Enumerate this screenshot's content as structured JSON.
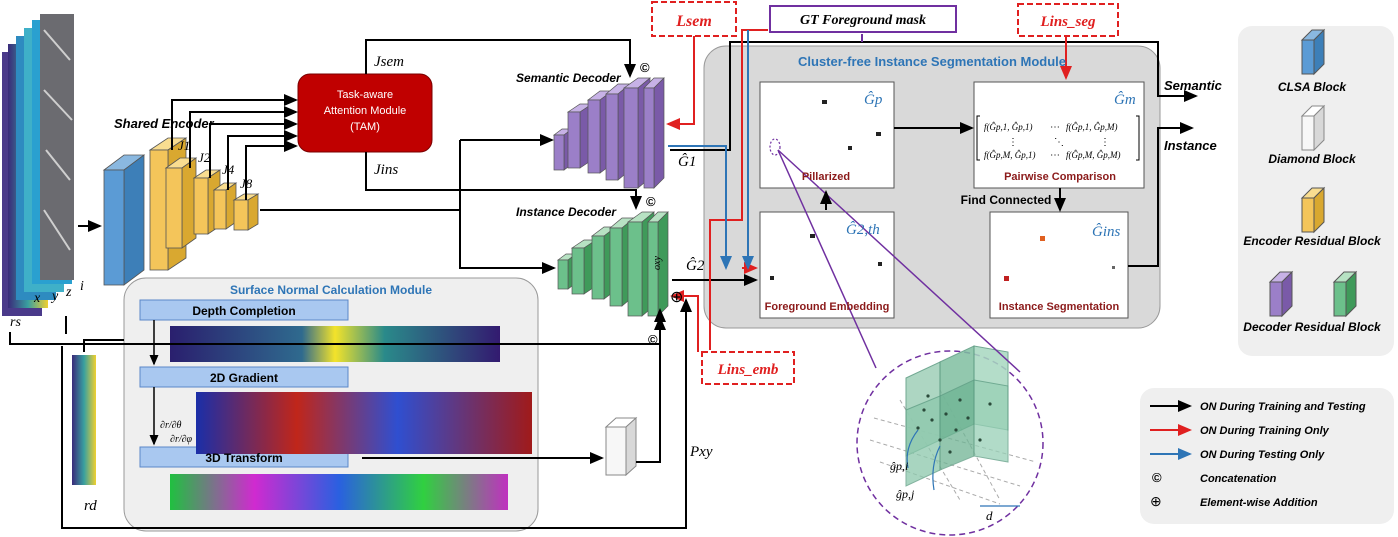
{
  "labels": {
    "shared_encoder": "Shared Encoder",
    "j1": "J1",
    "j2": "J2",
    "j4": "J4",
    "j8": "J8",
    "j_sem": "Jsem",
    "j_ins": "Jins",
    "tam_line1": "Task-aware",
    "tam_line2": "Attention Module",
    "tam_line3": "(TAM)",
    "semantic_decoder": "Semantic Decoder",
    "instance_decoder": "Instance Decoder",
    "g1": "Ĝ1",
    "g2": "Ĝ2",
    "oxy": "oxy",
    "rs": "rs",
    "x": "x",
    "y": "y",
    "z": "z",
    "i": "i",
    "rd": "rd",
    "pxy": "Pxy",
    "l_sem": "Lsem",
    "gt_mask": "GT Foreground mask",
    "l_ins_seg": "Lins_seg",
    "l_ins_emb": "Lins_emb",
    "concat_symbol": "©",
    "add_symbol": "⊕",
    "semantic_out": "Semantic",
    "instance_out": "Instance"
  },
  "cluster_module": {
    "title": "Cluster-free Instance Segmentation Module",
    "panels": {
      "pillarized": {
        "symbol": "Ĝp",
        "caption": "Pillarized"
      },
      "pairwise": {
        "symbol": "Ĝm",
        "caption": "Pairwise  Comparison",
        "matrix_top_left": "f(Ĝp,1, Ĝp,1)",
        "matrix_top_right": "f(Ĝp,1, Ĝp,M)",
        "matrix_bottom_left": "f(Ĝp,M, Ĝp,1)",
        "matrix_bottom_right": "f(Ĝp,M, Ĝp,M)",
        "dots": "⋯",
        "vdots": "⋮",
        "ddots": "⋱"
      },
      "foreground": {
        "symbol": "Ĝ2,th",
        "caption": "Foreground Embedding"
      },
      "instance_seg": {
        "symbol": "Ĝins",
        "caption": "Instance  Segmentation"
      }
    },
    "find_connected": "Find Connected"
  },
  "surface_module": {
    "title": "Surface Normal Calculation Module",
    "steps": [
      "Depth Completion",
      "2D Gradient",
      "3D Transform"
    ],
    "grad_label_1": "∂r/∂θ",
    "grad_label_2": "∂r/∂φ"
  },
  "zoom": {
    "label_i": "ĝp,i",
    "label_j": "ĝp,j",
    "label_d": "d"
  },
  "legend_blocks": [
    {
      "name": "CLSA Block",
      "color": "#5b9bd5"
    },
    {
      "name": "Diamond Block",
      "color": "#ffffff"
    },
    {
      "name": "Encoder Residual Block",
      "color": "#f4c55a"
    },
    {
      "name": "Decoder Residual Block",
      "colors": [
        "#9b7fc8",
        "#6cc08b"
      ]
    }
  ],
  "legend_arrows": [
    {
      "text": "ON During Training and Testing",
      "color": "#000000"
    },
    {
      "text": "ON During Training Only",
      "color": "#e02020"
    },
    {
      "text": "ON During Testing Only",
      "color": "#2e75b6"
    },
    {
      "symbol": "©",
      "text": "Concatenation"
    },
    {
      "symbol": "⊕",
      "text": "Element-wise Addition"
    }
  ]
}
